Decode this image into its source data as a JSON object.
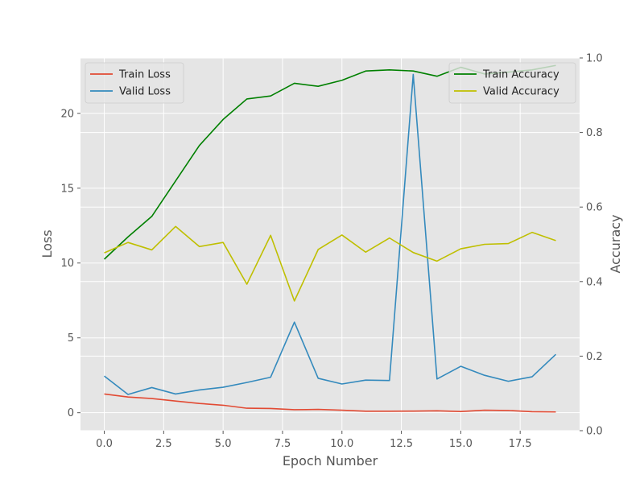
{
  "chart_data": {
    "type": "line",
    "title": "",
    "xlabel": "Epoch Number",
    "ylabel_left": "Loss",
    "ylabel_right": "Accuracy",
    "xlim": [
      -1,
      20
    ],
    "ylim_left": [
      -1.2,
      23.7
    ],
    "ylim_right": [
      0,
      1
    ],
    "xticks": [
      0,
      2.5,
      5,
      7.5,
      10,
      12.5,
      15,
      17.5
    ],
    "xtick_labels": [
      "0.0",
      "2.5",
      "5.0",
      "7.5",
      "10.0",
      "12.5",
      "15.0",
      "17.5"
    ],
    "yticks_left": [
      0,
      5,
      10,
      15,
      20
    ],
    "ytick_labels_left": [
      "0",
      "5",
      "10",
      "15",
      "20"
    ],
    "yticks_right": [
      0,
      0.2,
      0.4,
      0.6,
      0.8,
      1.0
    ],
    "ytick_labels_right": [
      "0.0",
      "0.2",
      "0.4",
      "0.6",
      "0.8",
      "1.0"
    ],
    "grid": true,
    "x": [
      0,
      1,
      2,
      3,
      4,
      5,
      6,
      7,
      8,
      9,
      10,
      11,
      12,
      13,
      14,
      15,
      16,
      17,
      18,
      19
    ],
    "series": [
      {
        "name": "Train Loss",
        "axis": "left",
        "color": "#E24A33",
        "values": [
          1.25,
          1.05,
          0.95,
          0.78,
          0.62,
          0.5,
          0.3,
          0.28,
          0.2,
          0.22,
          0.17,
          0.1,
          0.1,
          0.11,
          0.13,
          0.08,
          0.17,
          0.15,
          0.07,
          0.05
        ]
      },
      {
        "name": "Valid Loss",
        "axis": "left",
        "color": "#348ABD",
        "values": [
          2.45,
          1.22,
          1.68,
          1.25,
          1.52,
          1.7,
          2.02,
          2.37,
          6.05,
          2.3,
          1.92,
          2.18,
          2.15,
          22.6,
          2.25,
          3.1,
          2.5,
          2.1,
          2.4,
          3.9
        ]
      },
      {
        "name": "Train Accuracy",
        "axis": "right",
        "color": "#008000",
        "values": [
          0.46,
          0.52,
          0.575,
          0.67,
          0.765,
          0.835,
          0.89,
          0.898,
          0.932,
          0.924,
          0.94,
          0.965,
          0.968,
          0.965,
          0.951,
          0.975,
          0.957,
          0.962,
          0.968,
          0.98
        ]
      },
      {
        "name": "Valid Accuracy",
        "axis": "right",
        "color": "#BFBF00",
        "values": [
          0.477,
          0.505,
          0.485,
          0.548,
          0.494,
          0.505,
          0.393,
          0.524,
          0.348,
          0.486,
          0.525,
          0.479,
          0.517,
          0.478,
          0.455,
          0.488,
          0.5,
          0.502,
          0.532,
          0.51
        ]
      }
    ],
    "legend_left": {
      "placement": "upper-left",
      "entries": [
        "Train Loss",
        "Valid Loss"
      ]
    },
    "legend_right": {
      "placement": "upper-right",
      "entries": [
        "Train Accuracy",
        "Valid Accuracy"
      ]
    }
  }
}
